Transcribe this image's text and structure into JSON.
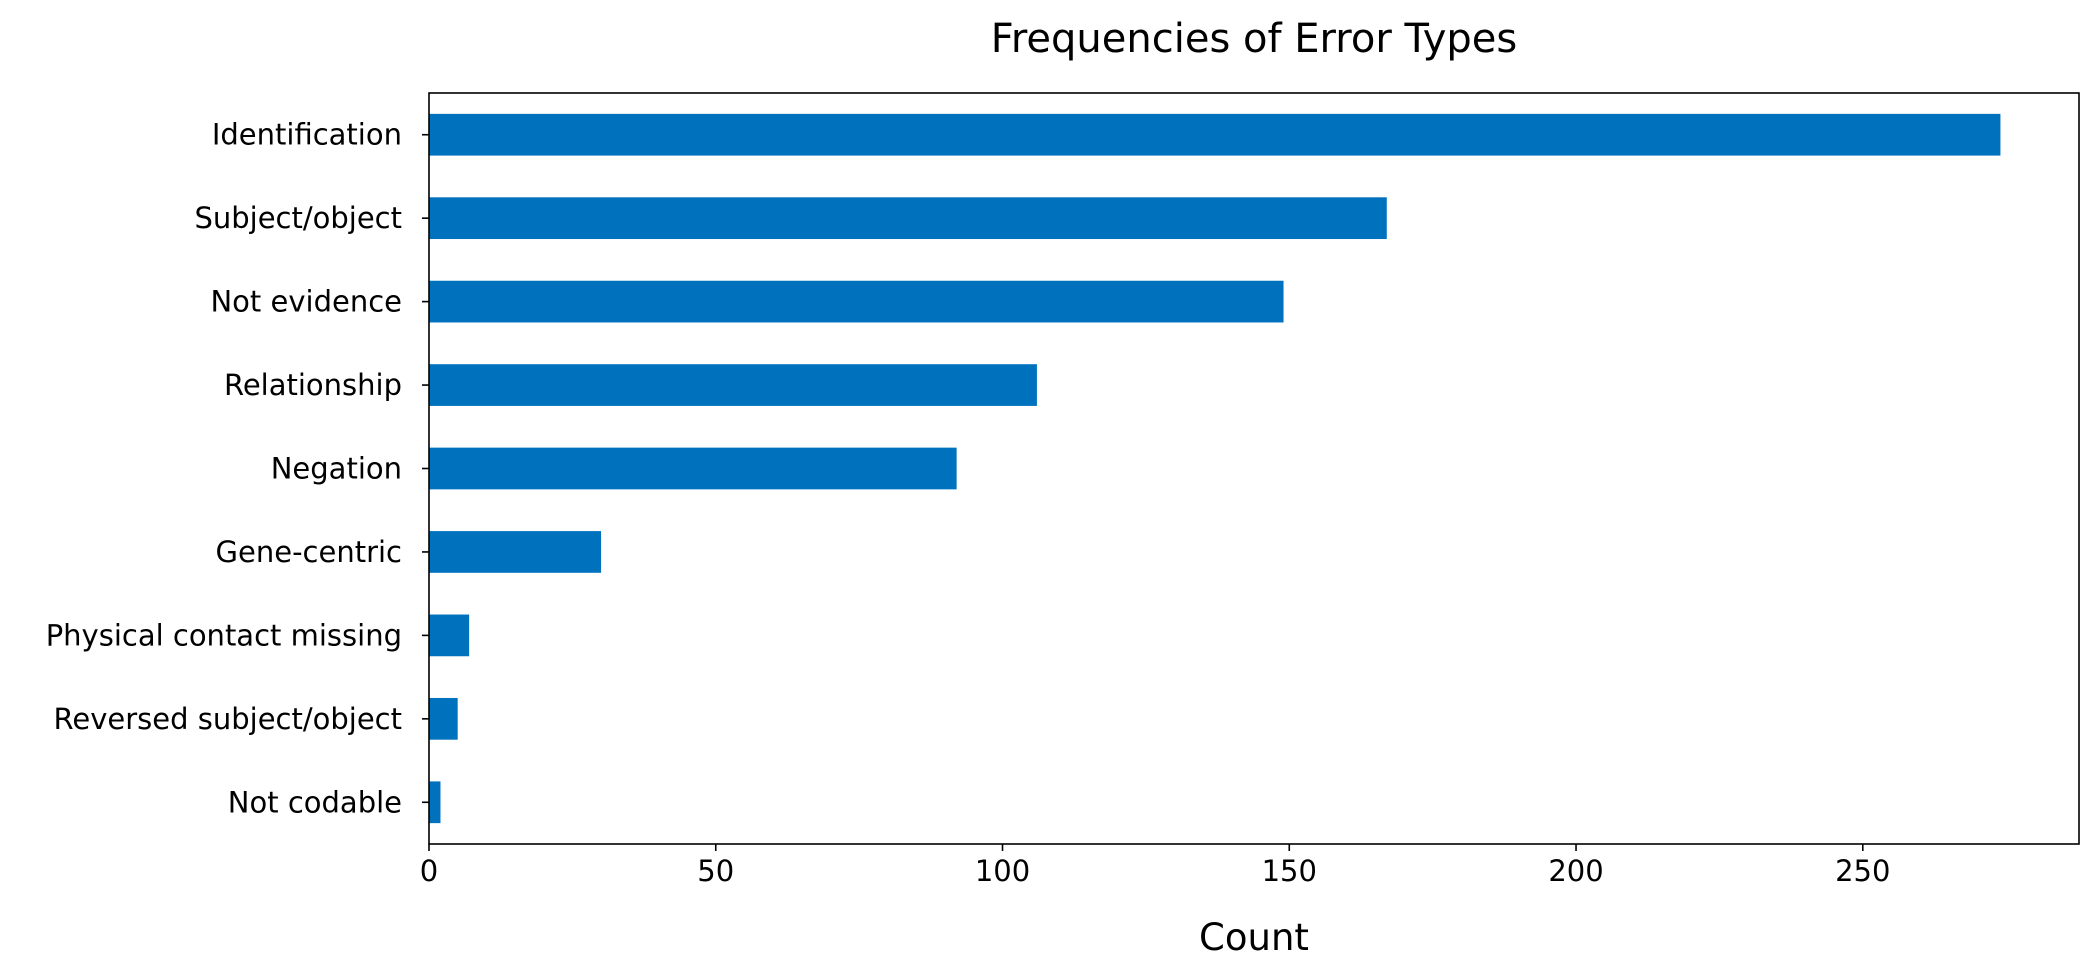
{
  "chart_data": {
    "type": "bar",
    "orientation": "horizontal",
    "title": "Frequencies of Error Types",
    "xlabel": "Count",
    "ylabel": "",
    "categories": [
      "Identification",
      "Subject/object",
      "Not evidence",
      "Relationship",
      "Negation",
      "Gene-centric",
      "Physical contact missing",
      "Reversed subject/object",
      "Not codable"
    ],
    "values": [
      274,
      167,
      149,
      106,
      92,
      30,
      7,
      5,
      2
    ],
    "xlim": [
      0,
      287.7
    ],
    "xticks": [
      0,
      50,
      100,
      150,
      200,
      250
    ],
    "xtick_labels": [
      "0",
      "50",
      "100",
      "150",
      "200",
      "250"
    ],
    "grid": false,
    "legend": "none",
    "bar_color": "#0072bd"
  }
}
